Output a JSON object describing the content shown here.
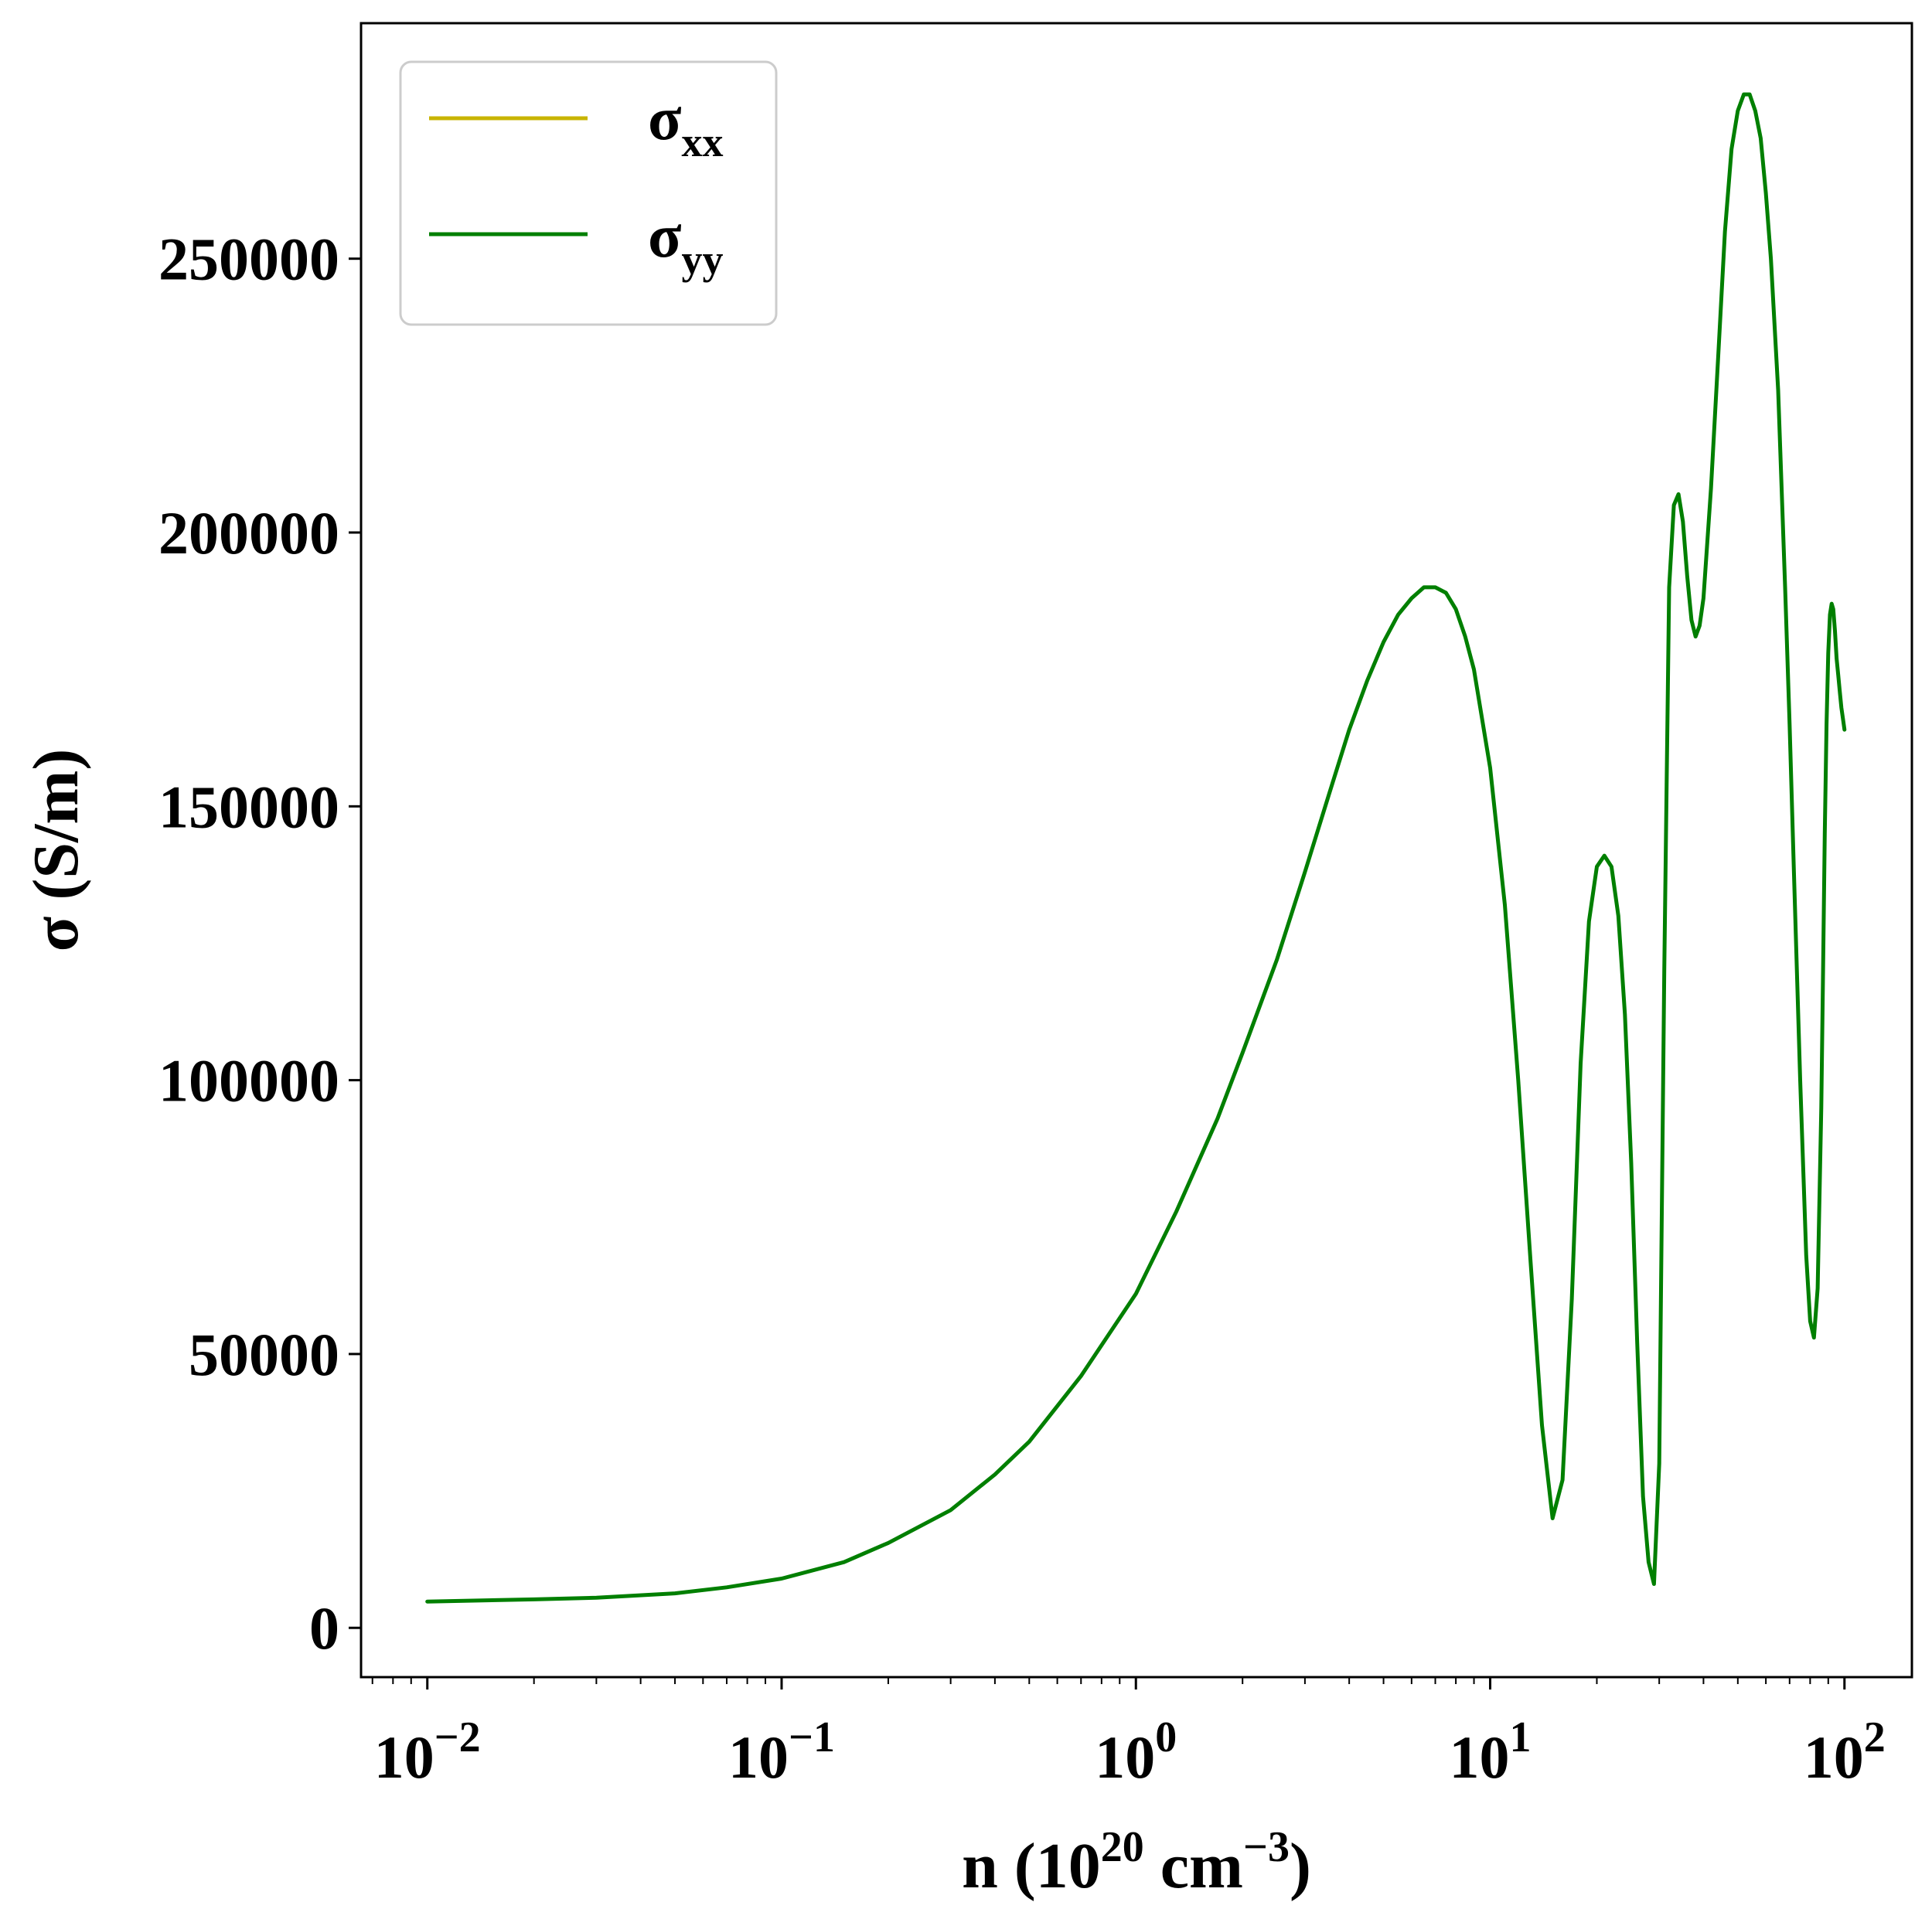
{
  "chart_data": {
    "type": "line",
    "xscale": "log",
    "xlabel": {
      "base": "n (10",
      "sup1": "20",
      "mid": " cm",
      "sup2": "−3",
      "end": ")"
    },
    "ylabel": "σ (S/m)",
    "xlim": [
      0.0065,
      155
    ],
    "ylim": [
      -9000,
      293000
    ],
    "x_ticks": [
      {
        "value": 0.01,
        "base": "10",
        "exp": "−2"
      },
      {
        "value": 0.1,
        "base": "10",
        "exp": "−1"
      },
      {
        "value": 1,
        "base": "10",
        "exp": "0"
      },
      {
        "value": 10,
        "base": "10",
        "exp": "1"
      },
      {
        "value": 100,
        "base": "10",
        "exp": "2"
      }
    ],
    "y_ticks": [
      {
        "value": 0,
        "label": "0"
      },
      {
        "value": 50000,
        "label": "50000"
      },
      {
        "value": 100000,
        "label": "100000"
      },
      {
        "value": 150000,
        "label": "150000"
      },
      {
        "value": 200000,
        "label": "200000"
      },
      {
        "value": 250000,
        "label": "250000"
      }
    ],
    "grid": false,
    "legend_position": "top-left",
    "series": [
      {
        "name": "σ",
        "sub": "xx",
        "color": "#c8b400",
        "x": [],
        "y": []
      },
      {
        "name": "σ",
        "sub": "yy",
        "color": "#007f00",
        "x": [
          0.01,
          0.02,
          0.03,
          0.05,
          0.07,
          0.1,
          0.15,
          0.2,
          0.3,
          0.4,
          0.5,
          0.7,
          1.0,
          1.3,
          1.7,
          2.0,
          2.5,
          3.0,
          3.5,
          4.0,
          4.5,
          5.0,
          5.5,
          6.0,
          6.5,
          7.0,
          7.5,
          8.0,
          8.5,
          9.0,
          10.0,
          11.0,
          12.0,
          13.0,
          14.0,
          15.0,
          16.0,
          17.0,
          18.0,
          19.0,
          20.0,
          21.0,
          22.0,
          23.0,
          24.0,
          25.0,
          26.0,
          27.0,
          28.0,
          29.0,
          30.0,
          31.0,
          32.0,
          33.0,
          34.0,
          35.0,
          36.0,
          37.0,
          38.0,
          39.0,
          40.0,
          42.0,
          44.0,
          46.0,
          48.0,
          50.0,
          52.0,
          54.0,
          56.0,
          58.0,
          60.0,
          62.0,
          65.0,
          68.0,
          70.0,
          72.0,
          75.0,
          78.0,
          80.0,
          82.0,
          84.0,
          86.0,
          87.0,
          88.0,
          89.0,
          90.0,
          91.0,
          92.0,
          93.0,
          94.0,
          95.0,
          96.0,
          97.0,
          98.0,
          99.0,
          100.0
        ],
        "y": [
          4800,
          5200,
          5500,
          6300,
          7400,
          9000,
          12000,
          15500,
          21500,
          28000,
          34000,
          46000,
          61000,
          76000,
          93000,
          105000,
          122000,
          138000,
          152000,
          164000,
          173000,
          180000,
          185000,
          188000,
          190000,
          190000,
          189000,
          186000,
          181000,
          175000,
          157000,
          132000,
          100000,
          67000,
          37000,
          20000,
          27000,
          60000,
          103000,
          129000,
          139000,
          141000,
          139000,
          130000,
          112000,
          85000,
          52000,
          24000,
          12000,
          8000,
          30000,
          120000,
          190000,
          205000,
          207000,
          202000,
          192000,
          184000,
          181000,
          183000,
          188000,
          208000,
          232000,
          255000,
          270000,
          277000,
          280000,
          280000,
          277000,
          272000,
          262000,
          250000,
          226000,
          190000,
          165000,
          138000,
          100000,
          68000,
          56000,
          53000,
          62000,
          95000,
          120000,
          145000,
          165000,
          178000,
          185000,
          187000,
          186000,
          182000,
          177000,
          174000,
          171000,
          168000,
          166000,
          164000
        ]
      }
    ]
  }
}
